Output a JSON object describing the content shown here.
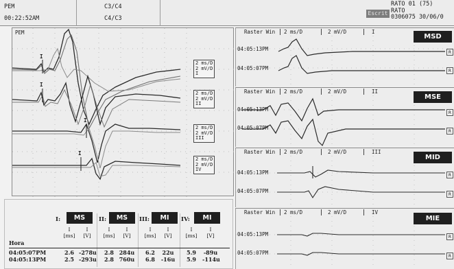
{
  "header": {
    "app_name": "PEM",
    "elapsed": "00:22:52AM",
    "channels_top": "C3/C4",
    "channels_bottom": "C4/C3",
    "status": "Escrit",
    "subject_line1": "RATO 01 (75)",
    "subject_line2": "RATO",
    "subject_line3": "0306075   30/06/0"
  },
  "left_panel": {
    "title": "PEM",
    "channels": [
      {
        "scale1": "2 ms/D",
        "scale2": "2 mV/D",
        "name": "I",
        "marker": "I"
      },
      {
        "scale1": "2 ms/D",
        "scale2": "2 mV/D",
        "name": "II",
        "marker": "I"
      },
      {
        "scale1": "2 ms/D",
        "scale2": "2 mV/D",
        "name": "III",
        "marker": "I"
      },
      {
        "scale1": "2 ms/D",
        "scale2": "2 mV/D",
        "name": "IV",
        "marker": "I"
      }
    ]
  },
  "raster_panels": [
    {
      "window": "Raster Win",
      "scale1": "2 ms/D",
      "scale2": "2 mV/D",
      "channel": "I",
      "tag": "MSD",
      "time1": "04:05:13PM",
      "time2": "04:05:07PM",
      "button": "R"
    },
    {
      "window": "Raster Win",
      "scale1": "2 ms/D",
      "scale2": "2 mV/D",
      "channel": "II",
      "tag": "MSE",
      "time1": "04:05:13PM",
      "time2": "04:05:07PM",
      "button": "R"
    },
    {
      "window": "Raster Win",
      "scale1": "2 ms/D",
      "scale2": "2 mV/D",
      "channel": "III",
      "tag": "MID",
      "time1": "04:05:13PM",
      "time2": "04:05:07PM",
      "button": "R"
    },
    {
      "window": "Raster Win",
      "scale1": "2 ms/D",
      "scale2": "2 mV/D",
      "channel": "IV",
      "tag": "MIE",
      "time1": "04:05:13PM",
      "time2": "04:05:07PM",
      "button": "R"
    }
  ],
  "results": {
    "groups": [
      {
        "label": "I:",
        "tag": "MS"
      },
      {
        "label": "II:",
        "tag": "MS"
      },
      {
        "label": "III:",
        "tag": "MI"
      },
      {
        "label": "IV:",
        "tag": "MI"
      }
    ],
    "column_headers": [
      {
        "top": "I",
        "unit": "[ms]"
      },
      {
        "top": "I",
        "unit": "[V]"
      },
      {
        "top": "I",
        "unit": "[ms]"
      },
      {
        "top": "I",
        "unit": "[V]"
      },
      {
        "top": "I",
        "unit": "[ms]"
      },
      {
        "top": "I",
        "unit": "[V]"
      },
      {
        "top": "I",
        "unit": "[ms]"
      },
      {
        "top": "I",
        "unit": "[V]"
      }
    ],
    "hora_label": "Hora",
    "rows": [
      {
        "time": "04:05:07PM",
        "values": [
          "2.6",
          "-278u",
          "2.8",
          "284u",
          "6.2",
          "22u",
          "5.9",
          "-89u"
        ]
      },
      {
        "time": "04:05:13PM",
        "values": [
          "2.5",
          "-293u",
          "2.8",
          "760u",
          "6.8",
          "-16u",
          "5.9",
          "-114u"
        ]
      }
    ]
  }
}
